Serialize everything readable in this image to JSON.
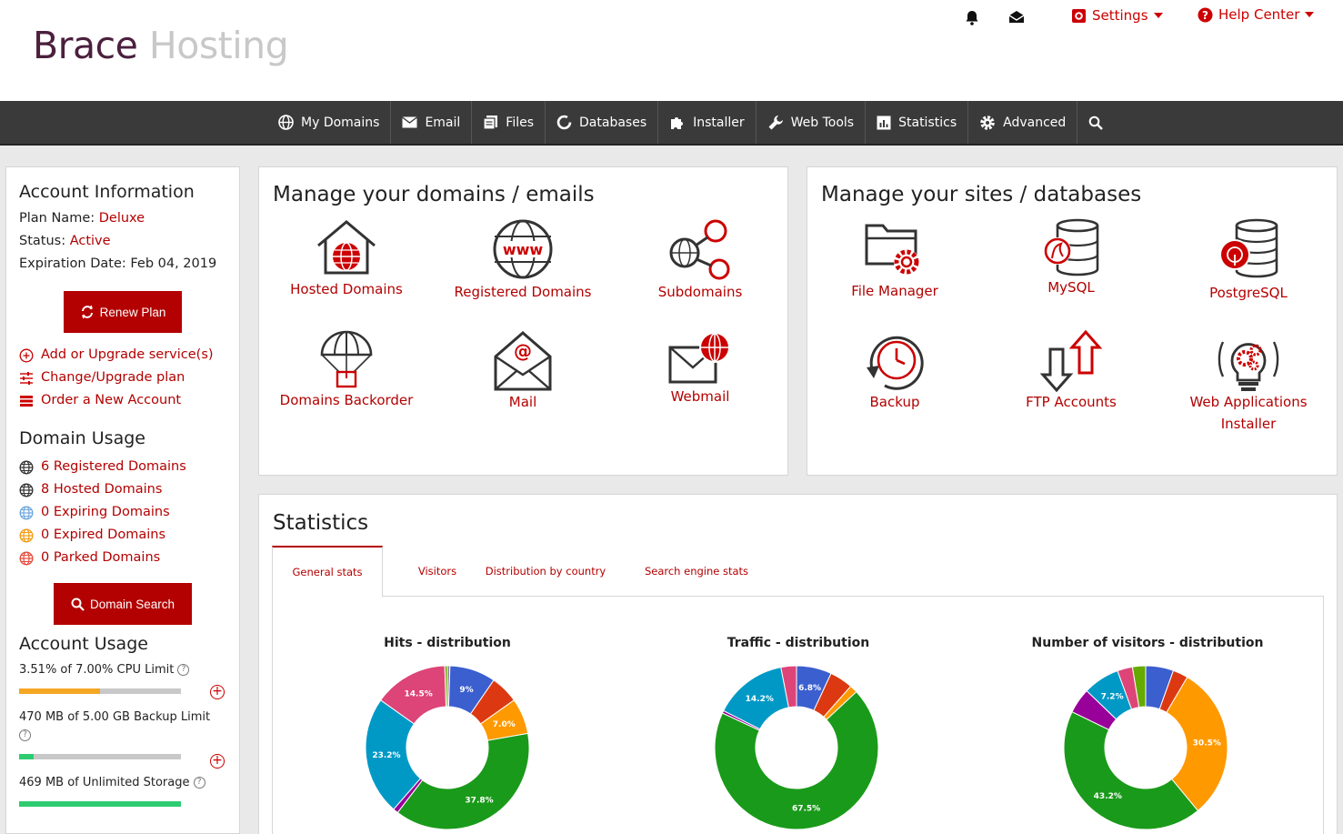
{
  "brand": {
    "name_part1": "Brace",
    "name_part2": " Hosting"
  },
  "top": {
    "settings_label": "Settings",
    "help_label": "Help Center"
  },
  "nav": [
    {
      "label": "My Domains",
      "icon": "globe-icon"
    },
    {
      "label": "Email",
      "icon": "envelope-icon"
    },
    {
      "label": "Files",
      "icon": "files-icon"
    },
    {
      "label": "Databases",
      "icon": "database-icon"
    },
    {
      "label": "Installer",
      "icon": "puzzle-icon"
    },
    {
      "label": "Web Tools",
      "icon": "wrench-icon"
    },
    {
      "label": "Statistics",
      "icon": "bar-chart-icon"
    },
    {
      "label": "Advanced",
      "icon": "gear-icon"
    }
  ],
  "account": {
    "title": "Account Information",
    "plan_label": "Plan Name:",
    "plan_value": "Deluxe",
    "status_label": "Status:",
    "status_value": "Active",
    "expiry_label": "Expiration Date:",
    "expiry_value": "Feb 04, 2019",
    "renew_label": "Renew Plan",
    "links": [
      "Add or Upgrade service(s)",
      "Change/Upgrade plan",
      "Order a New Account"
    ]
  },
  "domain_usage": {
    "title": "Domain Usage",
    "items": [
      {
        "label": "6 Registered Domains",
        "color": "#333333"
      },
      {
        "label": "8 Hosted Domains",
        "color": "#333333"
      },
      {
        "label": "0 Expiring Domains",
        "color": "#6fa8dc"
      },
      {
        "label": "0 Expired Domains",
        "color": "#f39c12"
      },
      {
        "label": "0 Parked Domains",
        "color": "#e74c3c"
      }
    ],
    "search_label": "Domain Search"
  },
  "account_usage": {
    "title": "Account Usage",
    "cpu_text": "3.51% of 7.00% CPU Limit",
    "cpu_fraction": 0.5,
    "backup_text": "470 MB of 5.00 GB Backup Limit",
    "backup_fraction": 0.09,
    "storage_text": "469 MB of Unlimited Storage",
    "storage_fraction": 1.0
  },
  "domains_card": {
    "title": "Manage your domains / emails",
    "tiles": [
      "Hosted Domains",
      "Registered Domains",
      "Subdomains",
      "Domains Backorder",
      "Mail",
      "Webmail"
    ]
  },
  "sites_card": {
    "title": "Manage your sites / databases",
    "tiles": [
      "File Manager",
      "MySQL",
      "PostgreSQL",
      "Backup",
      "FTP Accounts",
      "Web Applications Installer"
    ]
  },
  "statistics": {
    "title": "Statistics",
    "tabs": [
      "General stats",
      "Visitors",
      "Distribution by country",
      "Search engine stats"
    ]
  },
  "chart_data": [
    {
      "type": "pie",
      "title": "Hits - distribution",
      "slices": [
        {
          "value": 0.5,
          "color": "#888888",
          "label": ""
        },
        {
          "value": 9.0,
          "color": "#3b5fcf",
          "label": "9%"
        },
        {
          "value": 5.5,
          "color": "#dc3912",
          "label": ""
        },
        {
          "value": 7.0,
          "color": "#ff9900",
          "label": "7.0%"
        },
        {
          "value": 37.8,
          "color": "#1a9a1a",
          "label": "37.8%"
        },
        {
          "value": 1.0,
          "color": "#990099",
          "label": ""
        },
        {
          "value": 23.2,
          "color": "#0099c6",
          "label": "23.2%"
        },
        {
          "value": 14.5,
          "color": "#dd4477",
          "label": "14.5%"
        },
        {
          "value": 0.5,
          "color": "#66aa00",
          "label": ""
        }
      ]
    },
    {
      "type": "pie",
      "title": "Traffic - distribution",
      "slices": [
        {
          "value": 6.8,
          "color": "#3b5fcf",
          "label": "6.8%"
        },
        {
          "value": 4.5,
          "color": "#dc3912",
          "label": ""
        },
        {
          "value": 1.5,
          "color": "#ff9900",
          "label": ""
        },
        {
          "value": 67.5,
          "color": "#1a9a1a",
          "label": "67.5%"
        },
        {
          "value": 0.5,
          "color": "#990099",
          "label": ""
        },
        {
          "value": 14.2,
          "color": "#0099c6",
          "label": "14.2%"
        },
        {
          "value": 3.0,
          "color": "#dd4477",
          "label": ""
        }
      ]
    },
    {
      "type": "pie",
      "title": "Number of visitors - distribution",
      "slices": [
        {
          "value": 5.5,
          "color": "#3b5fcf",
          "label": ""
        },
        {
          "value": 3.0,
          "color": "#dc3912",
          "label": ""
        },
        {
          "value": 30.5,
          "color": "#ff9900",
          "label": "30.5%"
        },
        {
          "value": 43.2,
          "color": "#1a9a1a",
          "label": "43.2%"
        },
        {
          "value": 5.0,
          "color": "#990099",
          "label": ""
        },
        {
          "value": 7.2,
          "color": "#0099c6",
          "label": "7.2%"
        },
        {
          "value": 3.0,
          "color": "#dd4477",
          "label": ""
        },
        {
          "value": 2.6,
          "color": "#66aa00",
          "label": ""
        }
      ]
    }
  ]
}
